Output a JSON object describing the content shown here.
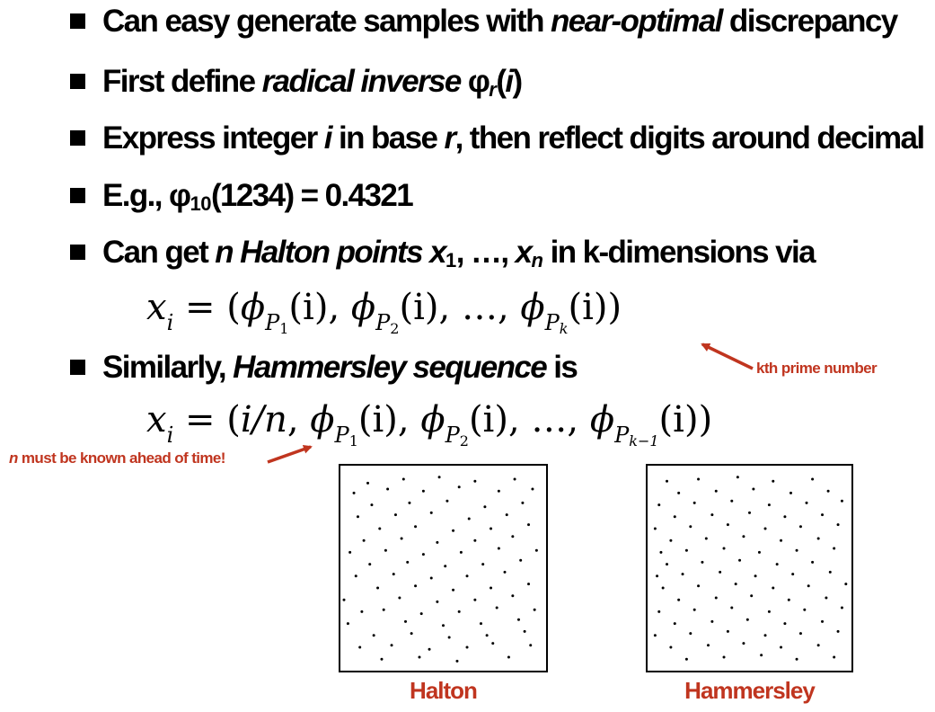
{
  "bullets": {
    "b1": {
      "pre": "Can easy generate samples with ",
      "em": "near-optimal",
      "post": " discrepancy"
    },
    "b2": {
      "pre": "First define ",
      "em": "radical inverse",
      "sym": " φ",
      "sub": "r",
      "open": "(",
      "arg": "i",
      "close": ")"
    },
    "b3": {
      "pre": "Express integer ",
      "em1": "i",
      "mid": " in base ",
      "em2": "r",
      "post": ", then reflect digits around decimal"
    },
    "b4": {
      "pre": "E.g., φ",
      "sub": "10",
      "post": "(1234) = 0.4321"
    },
    "b5": {
      "pre": "Can get ",
      "em": "n Halton points x",
      "sub1": "1",
      "mid": ", …, ",
      "em2": "x",
      "sub2": "n",
      "post": " in k-dimensions via"
    },
    "b6": {
      "pre": "Similarly, ",
      "em": "Hammersley sequence",
      "post": " is"
    }
  },
  "formulas": {
    "halton": {
      "lhs": "x",
      "lhs_sub": "i",
      "eq": " = (",
      "phi": "ϕ",
      "p1": "P",
      "p1s": "1",
      "p2s": "2",
      "pks": "k",
      "arg": "(i)",
      "sep": ", ",
      "dots": "…",
      "end": ")"
    },
    "hammersley": {
      "lhs": "x",
      "lhs_sub": "i",
      "eq": " = (",
      "first": "i/n",
      "phi": "ϕ",
      "p": "P",
      "p1s": "1",
      "p2s": "2",
      "pks": "k−1",
      "arg": "(i)",
      "sep": ", ",
      "dots": "…",
      "end": ")"
    }
  },
  "annotations": {
    "kth_prime": "kth prime number",
    "n_known_em": "n",
    "n_known_rest": " must be known ahead of time!"
  },
  "plots": [
    {
      "label": "Halton",
      "points": [
        [
          0.12,
          0.07
        ],
        [
          0.3,
          0.05
        ],
        [
          0.48,
          0.04
        ],
        [
          0.66,
          0.06
        ],
        [
          0.86,
          0.05
        ],
        [
          0.05,
          0.12
        ],
        [
          0.22,
          0.1
        ],
        [
          0.4,
          0.11
        ],
        [
          0.58,
          0.09
        ],
        [
          0.78,
          0.11
        ],
        [
          0.95,
          0.1
        ],
        [
          0.14,
          0.18
        ],
        [
          0.33,
          0.17
        ],
        [
          0.52,
          0.16
        ],
        [
          0.71,
          0.19
        ],
        [
          0.9,
          0.17
        ],
        [
          0.07,
          0.24
        ],
        [
          0.26,
          0.23
        ],
        [
          0.44,
          0.22
        ],
        [
          0.63,
          0.25
        ],
        [
          0.82,
          0.23
        ],
        [
          0.18,
          0.3
        ],
        [
          0.36,
          0.29
        ],
        [
          0.55,
          0.31
        ],
        [
          0.74,
          0.3
        ],
        [
          0.93,
          0.28
        ],
        [
          0.1,
          0.36
        ],
        [
          0.29,
          0.35
        ],
        [
          0.47,
          0.37
        ],
        [
          0.66,
          0.36
        ],
        [
          0.85,
          0.34
        ],
        [
          0.03,
          0.42
        ],
        [
          0.21,
          0.41
        ],
        [
          0.4,
          0.43
        ],
        [
          0.59,
          0.42
        ],
        [
          0.78,
          0.4
        ],
        [
          0.97,
          0.41
        ],
        [
          0.13,
          0.48
        ],
        [
          0.32,
          0.47
        ],
        [
          0.51,
          0.49
        ],
        [
          0.7,
          0.48
        ],
        [
          0.89,
          0.46
        ],
        [
          0.06,
          0.54
        ],
        [
          0.25,
          0.53
        ],
        [
          0.44,
          0.55
        ],
        [
          0.62,
          0.54
        ],
        [
          0.81,
          0.52
        ],
        [
          0.17,
          0.6
        ],
        [
          0.36,
          0.59
        ],
        [
          0.55,
          0.61
        ],
        [
          0.74,
          0.6
        ],
        [
          0.93,
          0.58
        ],
        [
          0.0,
          0.66
        ],
        [
          0.28,
          0.65
        ],
        [
          0.47,
          0.67
        ],
        [
          0.66,
          0.66
        ],
        [
          0.85,
          0.64
        ],
        [
          0.09,
          0.72
        ],
        [
          0.2,
          0.71
        ],
        [
          0.39,
          0.73
        ],
        [
          0.58,
          0.72
        ],
        [
          0.77,
          0.7
        ],
        [
          0.96,
          0.71
        ],
        [
          0.02,
          0.78
        ],
        [
          0.31,
          0.77
        ],
        [
          0.5,
          0.79
        ],
        [
          0.69,
          0.78
        ],
        [
          0.88,
          0.76
        ],
        [
          0.15,
          0.84
        ],
        [
          0.34,
          0.83
        ],
        [
          0.53,
          0.85
        ],
        [
          0.72,
          0.84
        ],
        [
          0.91,
          0.82
        ],
        [
          0.08,
          0.9
        ],
        [
          0.24,
          0.89
        ],
        [
          0.43,
          0.91
        ],
        [
          0.62,
          0.9
        ],
        [
          0.75,
          0.88
        ],
        [
          0.94,
          0.89
        ],
        [
          0.19,
          0.96
        ],
        [
          0.38,
          0.95
        ],
        [
          0.57,
          0.97
        ],
        [
          0.83,
          0.95
        ]
      ]
    },
    {
      "label": "Hammersley",
      "points": [
        [
          0.08,
          0.06
        ],
        [
          0.24,
          0.05
        ],
        [
          0.44,
          0.04
        ],
        [
          0.62,
          0.06
        ],
        [
          0.82,
          0.05
        ],
        [
          0.14,
          0.12
        ],
        [
          0.33,
          0.11
        ],
        [
          0.52,
          0.1
        ],
        [
          0.71,
          0.12
        ],
        [
          0.9,
          0.11
        ],
        [
          0.04,
          0.18
        ],
        [
          0.22,
          0.17
        ],
        [
          0.41,
          0.16
        ],
        [
          0.6,
          0.18
        ],
        [
          0.79,
          0.17
        ],
        [
          0.97,
          0.16
        ],
        [
          0.12,
          0.24
        ],
        [
          0.31,
          0.23
        ],
        [
          0.5,
          0.22
        ],
        [
          0.68,
          0.24
        ],
        [
          0.87,
          0.23
        ],
        [
          0.02,
          0.3
        ],
        [
          0.2,
          0.29
        ],
        [
          0.39,
          0.28
        ],
        [
          0.58,
          0.3
        ],
        [
          0.76,
          0.29
        ],
        [
          0.95,
          0.28
        ],
        [
          0.1,
          0.36
        ],
        [
          0.28,
          0.35
        ],
        [
          0.47,
          0.34
        ],
        [
          0.66,
          0.36
        ],
        [
          0.85,
          0.35
        ],
        [
          0.05,
          0.42
        ],
        [
          0.18,
          0.41
        ],
        [
          0.37,
          0.4
        ],
        [
          0.55,
          0.42
        ],
        [
          0.74,
          0.41
        ],
        [
          0.93,
          0.4
        ],
        [
          0.08,
          0.48
        ],
        [
          0.26,
          0.47
        ],
        [
          0.45,
          0.46
        ],
        [
          0.64,
          0.48
        ],
        [
          0.82,
          0.47
        ],
        [
          0.03,
          0.54
        ],
        [
          0.16,
          0.53
        ],
        [
          0.35,
          0.52
        ],
        [
          0.53,
          0.54
        ],
        [
          0.72,
          0.53
        ],
        [
          0.91,
          0.52
        ],
        [
          0.06,
          0.6
        ],
        [
          0.24,
          0.59
        ],
        [
          0.43,
          0.58
        ],
        [
          0.62,
          0.6
        ],
        [
          0.8,
          0.59
        ],
        [
          0.99,
          0.58
        ],
        [
          0.14,
          0.66
        ],
        [
          0.33,
          0.65
        ],
        [
          0.51,
          0.64
        ],
        [
          0.7,
          0.66
        ],
        [
          0.89,
          0.65
        ],
        [
          0.04,
          0.72
        ],
        [
          0.22,
          0.71
        ],
        [
          0.41,
          0.7
        ],
        [
          0.6,
          0.72
        ],
        [
          0.78,
          0.71
        ],
        [
          0.97,
          0.7
        ],
        [
          0.12,
          0.78
        ],
        [
          0.31,
          0.77
        ],
        [
          0.49,
          0.76
        ],
        [
          0.68,
          0.78
        ],
        [
          0.87,
          0.77
        ],
        [
          0.02,
          0.84
        ],
        [
          0.2,
          0.83
        ],
        [
          0.39,
          0.82
        ],
        [
          0.58,
          0.84
        ],
        [
          0.76,
          0.83
        ],
        [
          0.95,
          0.82
        ],
        [
          0.1,
          0.9
        ],
        [
          0.29,
          0.89
        ],
        [
          0.47,
          0.88
        ],
        [
          0.66,
          0.9
        ],
        [
          0.85,
          0.89
        ],
        [
          0.18,
          0.96
        ],
        [
          0.37,
          0.95
        ],
        [
          0.56,
          0.94
        ],
        [
          0.74,
          0.96
        ],
        [
          0.93,
          0.95
        ]
      ]
    }
  ]
}
